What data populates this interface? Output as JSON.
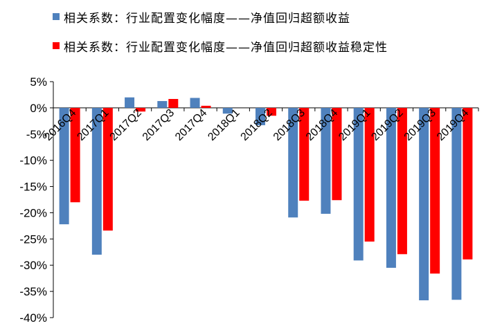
{
  "chart_data": {
    "type": "bar",
    "categories": [
      "2016Q4",
      "2017Q1",
      "2017Q2",
      "2017Q3",
      "2017Q4",
      "2018Q1",
      "2018Q2",
      "2018Q3",
      "2018Q4",
      "2019Q1",
      "2019Q2",
      "2019Q3",
      "2019Q4"
    ],
    "series": [
      {
        "name": "相关系数：行业配置变化幅度——净值回归超额收益",
        "color": "#4F81BD",
        "values": [
          -22.2,
          -28.0,
          2.0,
          1.3,
          1.9,
          -1.1,
          -3.3,
          -20.9,
          -20.2,
          -29.1,
          -30.5,
          -36.7,
          -36.6
        ]
      },
      {
        "name": "相关系数：行业配置变化幅度——净值回归超额收益稳定性",
        "color": "#FF0000",
        "values": [
          -18.0,
          -23.4,
          -0.7,
          1.7,
          0.4,
          0.0,
          -1.5,
          -17.7,
          -17.6,
          -25.5,
          -27.9,
          -31.6,
          -28.9
        ]
      }
    ],
    "ylim": [
      -40,
      5
    ],
    "yticks": [
      5,
      0,
      -5,
      -10,
      -15,
      -20,
      -25,
      -30,
      -35,
      -40
    ],
    "ytick_labels": [
      "5%",
      "0%",
      "-5%",
      "-10%",
      "-15%",
      "-20%",
      "-25%",
      "-30%",
      "-35%",
      "-40%"
    ],
    "legend_position": "top",
    "grid": false
  }
}
